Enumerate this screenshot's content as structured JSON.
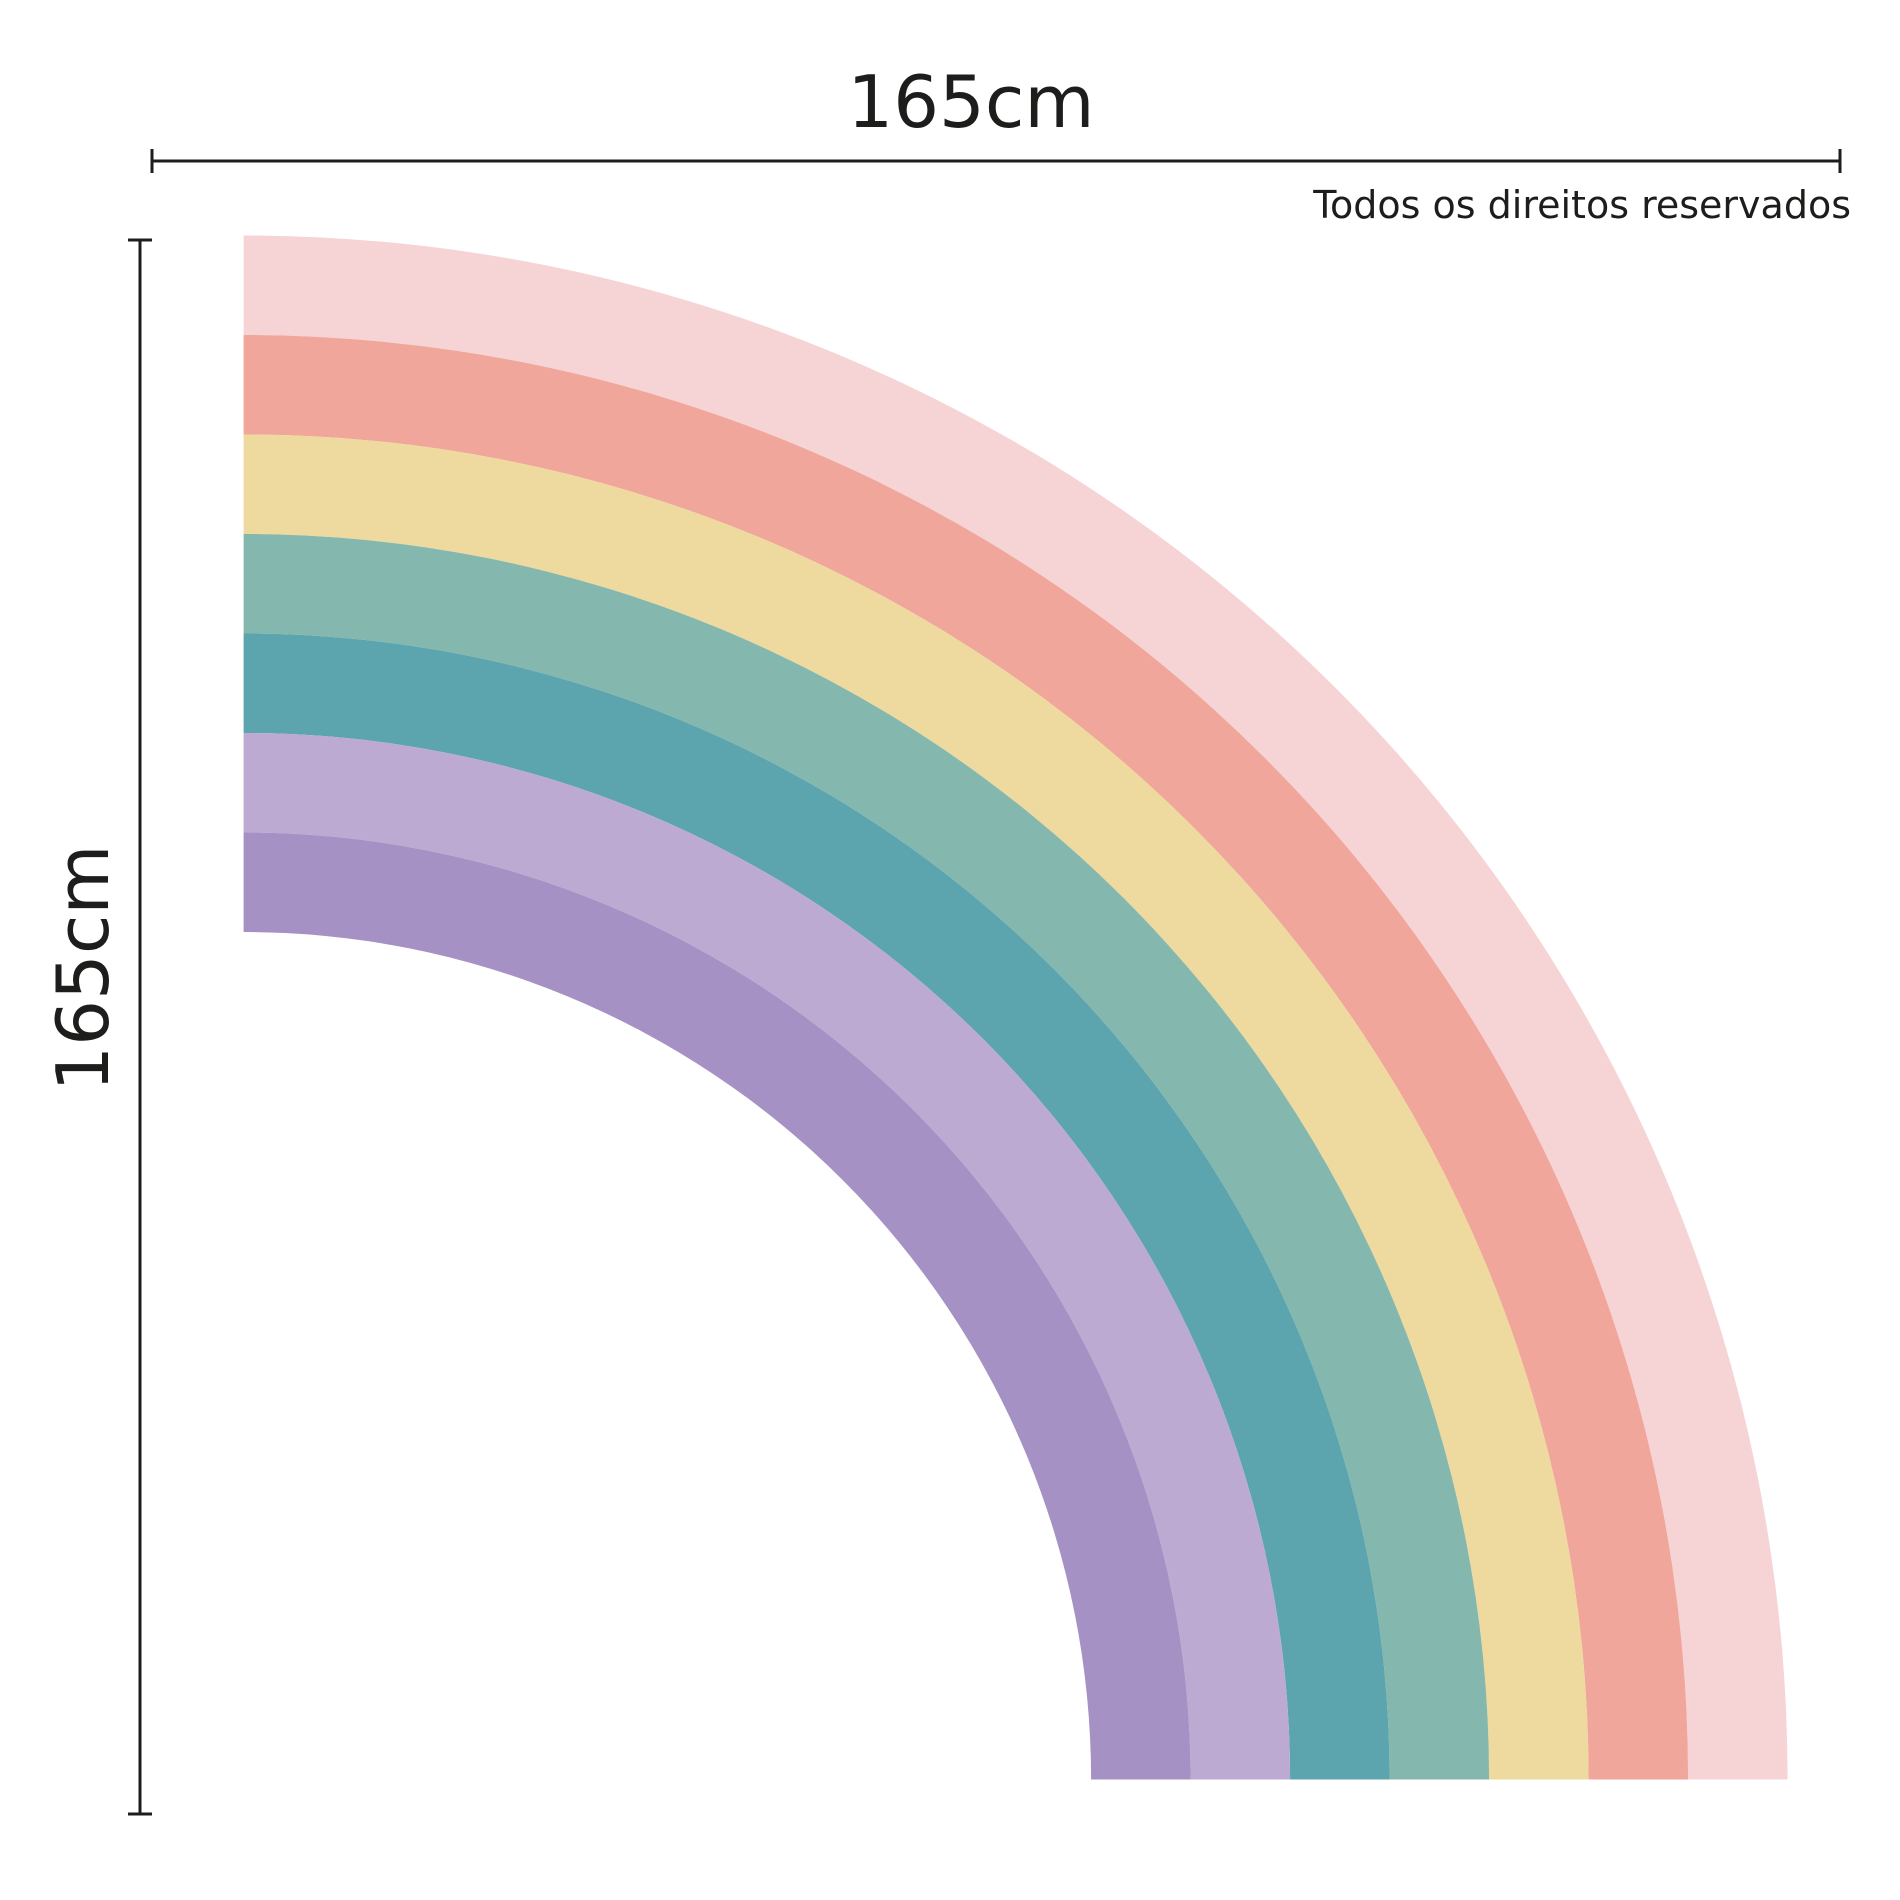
{
  "width_label": "165cm",
  "height_label": "165cm",
  "copyright": "Todos os direitos reservados"
}
